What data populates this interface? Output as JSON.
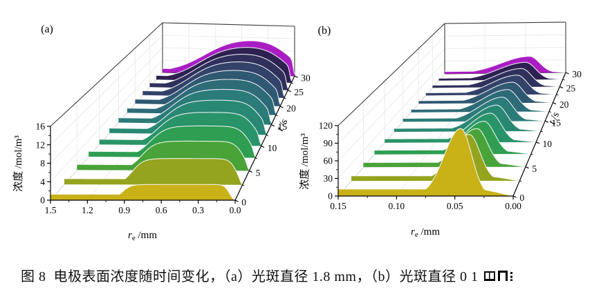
{
  "figure": {
    "panels": [
      {
        "id": "a",
        "label": "(a)",
        "axes": {
          "x": {
            "title_symbol": "r",
            "title_sub": "e",
            "title_unit": " /mm",
            "tick_labels": [
              "1.5",
              "1.2",
              "0.9",
              "0.6",
              "0.3",
              "0.0"
            ],
            "tick_values": [
              1.5,
              1.2,
              0.9,
              0.6,
              0.3,
              0.0
            ],
            "min": 0,
            "max": 1.5,
            "reversed": true
          },
          "y": {
            "title": "浓度 /mol/m³",
            "tick_labels": [
              "0",
              "4",
              "8",
              "12",
              "16"
            ],
            "tick_values": [
              0,
              4,
              8,
              12,
              16
            ],
            "min": 0,
            "max": 16
          },
          "t": {
            "title_symbol": "t",
            "title_unit": " /s",
            "tick_labels": [
              "0",
              "5",
              "10",
              "15",
              "20",
              "25",
              "30"
            ],
            "tick_values": [
              0,
              5,
              10,
              15,
              20,
              25,
              30
            ],
            "min": 0,
            "max": 30
          }
        }
      },
      {
        "id": "b",
        "label": "(b)",
        "axes": {
          "x": {
            "title_symbol": "r",
            "title_sub": "e",
            "title_unit": " /mm",
            "tick_labels": [
              "0.15",
              "0.10",
              "0.05",
              "0.00"
            ],
            "tick_values": [
              0.15,
              0.1,
              0.05,
              0.0
            ],
            "min": 0,
            "max": 0.15,
            "reversed": true
          },
          "y": {
            "title": "浓度 /mol/m³",
            "tick_labels": [
              "0",
              "30",
              "60",
              "90",
              "120"
            ],
            "tick_values": [
              0,
              30,
              60,
              90,
              120
            ],
            "min": 0,
            "max": 120
          },
          "t": {
            "title_symbol": "t",
            "title_unit": " /s",
            "tick_labels": [
              "0",
              "5",
              "10",
              "15",
              "20",
              "25",
              "30"
            ],
            "tick_values": [
              0,
              5,
              10,
              15,
              20,
              25,
              30
            ],
            "min": 0,
            "max": 30
          }
        }
      }
    ]
  },
  "caption": {
    "prefix": "图 8",
    "text": "电极表面浓度随时间变化，（a）光斑直径 1.8 mm，（b）光斑直径 0 1"
  },
  "chart_data": [
    {
      "type": "area",
      "subtype": "3d-waterfall-ridgeline",
      "panel": "a",
      "xlabel": "r_e /mm",
      "ylabel": "浓度 /mol/m3",
      "zlabel": "t /s",
      "x_range": [
        0,
        1.5
      ],
      "y_range": [
        0,
        16
      ],
      "t_range": [
        0,
        30
      ],
      "grid": true,
      "shape_note": "flat-top plateau from r=0.05 to r=0.9 mm (laser spot radius), sigmoid falloff near r=0.9 broadening and doming with time, thin baseline tail toward r=1.5, drop to 0 at r=0",
      "series": [
        {
          "t": 0.0,
          "plateau_height": 3.4,
          "baseline": 1.3,
          "color": "#c9b118"
        },
        {
          "t": 2.5,
          "plateau_height": 5.9,
          "baseline": 1.3,
          "color": "#94a41e"
        },
        {
          "t": 5.0,
          "plateau_height": 6.9,
          "baseline": 1.3,
          "color": "#4aa339"
        },
        {
          "t": 7.5,
          "plateau_height": 7.7,
          "baseline": 1.3,
          "color": "#2f9e52"
        },
        {
          "t": 10.0,
          "plateau_height": 8.4,
          "baseline": 1.3,
          "color": "#2a9469"
        },
        {
          "t": 12.5,
          "plateau_height": 9.0,
          "baseline": 1.3,
          "color": "#298874"
        },
        {
          "t": 15.0,
          "plateau_height": 9.5,
          "baseline": 1.3,
          "color": "#2b7b79"
        },
        {
          "t": 17.5,
          "plateau_height": 10.0,
          "baseline": 1.3,
          "color": "#2d6b77"
        },
        {
          "t": 20.0,
          "plateau_height": 10.4,
          "baseline": 1.3,
          "color": "#2f5872"
        },
        {
          "t": 22.5,
          "plateau_height": 10.9,
          "baseline": 1.3,
          "color": "#324269"
        },
        {
          "t": 25.0,
          "plateau_height": 11.3,
          "baseline": 1.3,
          "color": "#30305d"
        },
        {
          "t": 27.5,
          "plateau_height": 11.6,
          "baseline": 1.3,
          "color": "#2c2150"
        },
        {
          "t": 30.0,
          "plateau_height": 12.0,
          "baseline": 1.3,
          "color": "#a91dc3"
        }
      ]
    },
    {
      "type": "area",
      "subtype": "3d-waterfall-ridgeline",
      "panel": "b",
      "xlabel": "r_e /mm",
      "ylabel": "浓度 /mol/m3",
      "zlabel": "t /s",
      "x_range": [
        0,
        0.15
      ],
      "y_range": [
        0,
        120
      ],
      "t_range": [
        0,
        30
      ],
      "grid": true,
      "peak_position_mm": 0.045,
      "shape_note": "sharp asymmetric peak near r=0.045 mm, low flat baseline toward r=0.15, concave decay toward r=0",
      "series": [
        {
          "t": 0.0,
          "peak_height": 115,
          "baseline": 12,
          "color": "#c9b118"
        },
        {
          "t": 2.5,
          "peak_height": 82,
          "baseline": 9,
          "color": "#94a41e"
        },
        {
          "t": 5.0,
          "peak_height": 70,
          "baseline": 8.5,
          "color": "#4aa339"
        },
        {
          "t": 7.5,
          "peak_height": 62,
          "baseline": 8,
          "color": "#2f9e52"
        },
        {
          "t": 10.0,
          "peak_height": 56.5,
          "baseline": 7.5,
          "color": "#2a9469"
        },
        {
          "t": 12.5,
          "peak_height": 52.5,
          "baseline": 7,
          "color": "#298874"
        },
        {
          "t": 15.0,
          "peak_height": 49.5,
          "baseline": 7,
          "color": "#2b7b79"
        },
        {
          "t": 17.5,
          "peak_height": 47,
          "baseline": 6.5,
          "color": "#2d6b77"
        },
        {
          "t": 20.0,
          "peak_height": 45,
          "baseline": 6.5,
          "color": "#2f5872"
        },
        {
          "t": 22.5,
          "peak_height": 43.5,
          "baseline": 6,
          "color": "#324269"
        },
        {
          "t": 25.0,
          "peak_height": 42,
          "baseline": 6,
          "color": "#30305d"
        },
        {
          "t": 27.5,
          "peak_height": 40.5,
          "baseline": 5.5,
          "color": "#2c2150"
        },
        {
          "t": 30.0,
          "peak_height": 39.5,
          "baseline": 5.5,
          "color": "#a91dc3"
        }
      ]
    }
  ]
}
